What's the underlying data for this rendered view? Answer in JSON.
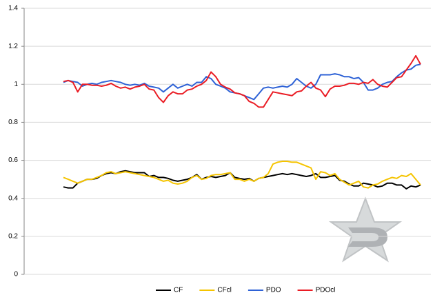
{
  "chart_data": {
    "type": "line",
    "categories": [
      null,
      null,
      null,
      null,
      null,
      null,
      null,
      null,
      null,
      null,
      null,
      null,
      null,
      null,
      null,
      null,
      null,
      null,
      null,
      null,
      null,
      null,
      null,
      null,
      null,
      null,
      null,
      null,
      null,
      null,
      null,
      null,
      null,
      null,
      null,
      null,
      null,
      null,
      null,
      null,
      null,
      null,
      null,
      null,
      null,
      null,
      null,
      null,
      null,
      null,
      null,
      null,
      null,
      null,
      null,
      null,
      null,
      null,
      null,
      null,
      null,
      null,
      null,
      null,
      null,
      null,
      null,
      null,
      null,
      null,
      null,
      null,
      null,
      null,
      null,
      null
    ],
    "series": [
      {
        "name": "CF",
        "color": "#000000",
        "values": [
          0.46,
          0.455,
          0.455,
          0.48,
          0.49,
          0.5,
          0.5,
          0.505,
          0.52,
          0.53,
          0.535,
          0.53,
          0.54,
          0.545,
          0.54,
          0.535,
          0.535,
          0.535,
          0.515,
          0.52,
          0.51,
          0.51,
          0.505,
          0.495,
          0.49,
          0.495,
          0.5,
          0.51,
          0.525,
          0.5,
          0.51,
          0.515,
          0.51,
          0.515,
          0.52,
          0.535,
          0.51,
          0.505,
          0.5,
          0.505,
          0.49,
          0.505,
          0.51,
          0.515,
          0.52,
          0.525,
          0.53,
          0.525,
          0.53,
          0.525,
          0.52,
          0.515,
          0.52,
          0.53,
          0.51,
          0.51,
          0.515,
          0.52,
          0.495,
          0.49,
          0.475,
          0.465,
          0.465,
          0.48,
          0.475,
          0.47,
          0.46,
          0.465,
          0.48,
          0.48,
          0.47,
          0.47,
          0.45,
          0.465,
          0.46,
          0.47
        ]
      },
      {
        "name": "CFcl",
        "color": "#f5c400",
        "values": [
          0.51,
          0.5,
          0.49,
          0.48,
          0.49,
          0.5,
          0.5,
          0.51,
          0.52,
          0.535,
          0.54,
          0.53,
          0.535,
          0.54,
          0.535,
          0.53,
          0.525,
          0.52,
          0.515,
          0.51,
          0.5,
          0.49,
          0.495,
          0.48,
          0.475,
          0.48,
          0.49,
          0.51,
          0.52,
          0.5,
          0.505,
          0.52,
          0.525,
          0.525,
          0.53,
          0.535,
          0.5,
          0.5,
          0.49,
          0.5,
          0.49,
          0.505,
          0.51,
          0.53,
          0.58,
          0.59,
          0.595,
          0.595,
          0.59,
          0.59,
          0.58,
          0.57,
          0.56,
          0.5,
          0.54,
          0.535,
          0.52,
          0.53,
          0.5,
          0.485,
          0.47,
          0.48,
          0.49,
          0.46,
          0.455,
          0.47,
          0.475,
          0.49,
          0.5,
          0.51,
          0.505,
          0.52,
          0.515,
          0.53,
          0.5,
          0.47
        ]
      },
      {
        "name": "PDO",
        "color": "#2e62d6",
        "values": [
          1.01,
          1.02,
          1.015,
          1.01,
          0.99,
          1.0,
          1.005,
          1.0,
          1.01,
          1.015,
          1.02,
          1.015,
          1.01,
          1.0,
          0.995,
          1.0,
          0.995,
          1.005,
          0.99,
          0.985,
          0.98,
          0.96,
          0.98,
          1.0,
          0.98,
          0.99,
          1.0,
          0.99,
          1.01,
          1.01,
          1.04,
          1.03,
          1.0,
          0.99,
          0.98,
          0.96,
          0.955,
          0.95,
          0.94,
          0.93,
          0.92,
          0.95,
          0.98,
          0.985,
          0.98,
          0.985,
          0.99,
          0.985,
          1.0,
          1.03,
          1.01,
          0.99,
          0.98,
          1.0,
          1.05,
          1.05,
          1.05,
          1.055,
          1.05,
          1.04,
          1.04,
          1.03,
          1.035,
          1.01,
          0.97,
          0.97,
          0.98,
          1.0,
          1.01,
          1.015,
          1.04,
          1.06,
          1.075,
          1.08,
          1.1,
          1.105
        ]
      },
      {
        "name": "PDOcl",
        "color": "#ea1c24",
        "values": [
          1.015,
          1.02,
          1.01,
          0.96,
          1.0,
          1.0,
          0.995,
          0.995,
          0.99,
          0.995,
          1.005,
          0.99,
          0.98,
          0.985,
          0.975,
          0.985,
          0.99,
          1.0,
          0.975,
          0.97,
          0.93,
          0.905,
          0.94,
          0.96,
          0.95,
          0.95,
          0.97,
          0.975,
          0.99,
          1.0,
          1.02,
          1.065,
          1.04,
          1.0,
          0.985,
          0.975,
          0.955,
          0.95,
          0.94,
          0.91,
          0.9,
          0.88,
          0.88,
          0.92,
          0.96,
          0.955,
          0.95,
          0.945,
          0.94,
          0.96,
          0.965,
          0.99,
          1.01,
          0.98,
          0.97,
          0.935,
          0.975,
          0.99,
          0.99,
          0.995,
          1.005,
          1.005,
          1.0,
          1.01,
          1.005,
          1.025,
          1.0,
          0.99,
          0.985,
          1.01,
          1.035,
          1.04,
          1.075,
          1.11,
          1.15,
          1.105
        ]
      }
    ],
    "ylim": [
      0,
      1.4
    ],
    "yticks": [
      0,
      0.2,
      0.4,
      0.6,
      0.8,
      1,
      1.2,
      1.4
    ],
    "grid": true,
    "legend": "bottom"
  }
}
